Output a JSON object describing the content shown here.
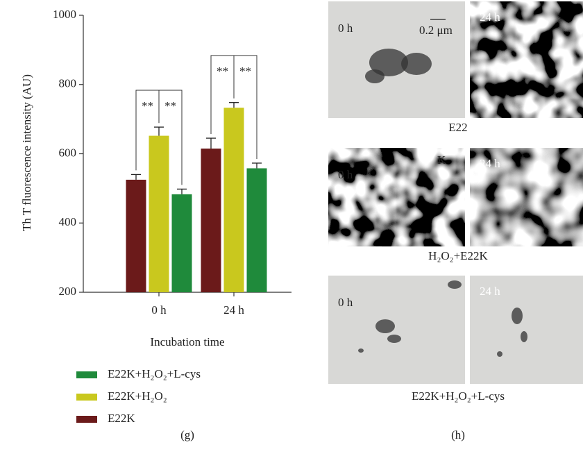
{
  "chart_data": {
    "type": "bar",
    "y_label": "Th T fluorescence intensity (AU)",
    "x_label": "Incubation time",
    "categories": [
      "0 h",
      "24 h"
    ],
    "series": [
      {
        "name": "E22K",
        "color": "#6b1a1a",
        "values": [
          525,
          615
        ],
        "errors": [
          15,
          30
        ]
      },
      {
        "name": "E22K+H₂O₂",
        "color": "#c9c81e",
        "values": [
          652,
          733
        ],
        "errors": [
          25,
          15
        ]
      },
      {
        "name": "E22K+H₂O₂+L-cys",
        "color": "#1f8a3b",
        "values": [
          483,
          558
        ],
        "errors": [
          15,
          15
        ]
      }
    ],
    "ylim": [
      200,
      1000
    ],
    "yticks": [
      200,
      400,
      600,
      800,
      1000
    ],
    "legend": "bottom",
    "annotations": [
      "**",
      "**",
      "**",
      "**"
    ]
  },
  "figure": {
    "panel_g": "(g)",
    "panel_h": "(h)",
    "rows": [
      {
        "caption": "E22",
        "left": "0 h",
        "right": "24 h",
        "scale": "0.2 μm"
      },
      {
        "caption": "H₂O₂+E22K",
        "left": "0 h",
        "right": "24 h",
        "mark": "K"
      },
      {
        "caption": "E22K+H₂O₂+L-cys",
        "left": "0 h",
        "right": "24 h"
      }
    ]
  }
}
